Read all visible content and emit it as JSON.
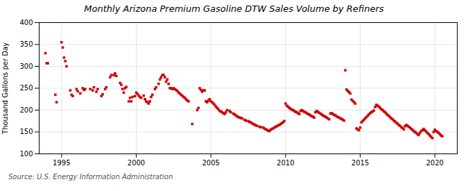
{
  "chart_data": {
    "type": "scatter",
    "title": "Monthly Arizona Premium Gasoline DTW Sales Volume by Refiners",
    "ylabel": "Thousand Gallons per Day",
    "source": "Source: U.S. Energy Information Administration",
    "color": "#cc0000",
    "marker": "square",
    "grid": true,
    "xlim": [
      1993.5,
      2021.5
    ],
    "ylim": [
      100,
      400
    ],
    "xticks": [
      1995,
      2000,
      2005,
      2010,
      2015,
      2020
    ],
    "yticks": [
      100,
      150,
      200,
      250,
      300,
      350,
      400
    ],
    "x": [
      1993.917,
      1994.0,
      1994.083,
      1994.583,
      1994.667,
      1995.0,
      1995.083,
      1995.167,
      1995.25,
      1995.333,
      1995.583,
      1995.667,
      1995.75,
      1996.0,
      1996.083,
      1996.25,
      1996.417,
      1996.5,
      1996.583,
      1996.917,
      1997.083,
      1997.167,
      1997.333,
      1997.417,
      1997.667,
      1997.75,
      1997.917,
      1998.0,
      1998.25,
      1998.333,
      1998.5,
      1998.583,
      1998.667,
      1998.917,
      1999.0,
      1999.083,
      1999.167,
      1999.25,
      1999.333,
      1999.5,
      1999.583,
      1999.667,
      1999.75,
      1999.917,
      2000.0,
      2000.083,
      2000.167,
      2000.25,
      2000.333,
      2000.5,
      2000.583,
      2000.667,
      2000.75,
      2000.833,
      2000.917,
      2001.0,
      2001.083,
      2001.25,
      2001.333,
      2001.5,
      2001.583,
      2001.667,
      2001.75,
      2001.833,
      2001.917,
      2002.0,
      2002.083,
      2002.167,
      2002.25,
      2002.333,
      2002.417,
      2002.5,
      2002.583,
      2002.667,
      2002.75,
      2002.833,
      2002.917,
      2003.0,
      2003.083,
      2003.167,
      2003.25,
      2003.333,
      2003.417,
      2003.5,
      2003.75,
      2004.083,
      2004.167,
      2004.25,
      2004.333,
      2004.417,
      2004.5,
      2004.583,
      2004.667,
      2004.75,
      2004.833,
      2004.917,
      2005.0,
      2005.083,
      2005.167,
      2005.25,
      2005.333,
      2005.417,
      2005.5,
      2005.583,
      2005.667,
      2005.75,
      2005.833,
      2005.917,
      2006.0,
      2006.083,
      2006.25,
      2006.333,
      2006.5,
      2006.583,
      2006.667,
      2006.75,
      2006.833,
      2006.917,
      2007.0,
      2007.083,
      2007.25,
      2007.333,
      2007.5,
      2007.583,
      2007.667,
      2007.75,
      2007.833,
      2007.917,
      2008.0,
      2008.083,
      2008.25,
      2008.333,
      2008.5,
      2008.583,
      2008.667,
      2008.75,
      2008.833,
      2008.917,
      2009.0,
      2009.083,
      2009.167,
      2009.25,
      2009.333,
      2009.417,
      2009.5,
      2009.583,
      2009.667,
      2009.75,
      2009.833,
      2009.917,
      2010.0,
      2010.083,
      2010.167,
      2010.25,
      2010.333,
      2010.417,
      2010.5,
      2010.583,
      2010.667,
      2010.75,
      2010.833,
      2010.917,
      2011.0,
      2011.083,
      2011.167,
      2011.25,
      2011.333,
      2011.417,
      2011.5,
      2011.583,
      2011.667,
      2011.75,
      2011.833,
      2011.917,
      2012.0,
      2012.083,
      2012.167,
      2012.25,
      2012.333,
      2012.417,
      2012.5,
      2012.583,
      2012.667,
      2012.75,
      2012.833,
      2012.917,
      2013.0,
      2013.083,
      2013.167,
      2013.25,
      2013.333,
      2013.417,
      2013.5,
      2013.583,
      2013.667,
      2013.75,
      2013.833,
      2013.917,
      2014.0,
      2014.083,
      2014.167,
      2014.25,
      2014.333,
      2014.417,
      2014.5,
      2014.583,
      2014.667,
      2014.75,
      2014.833,
      2014.917,
      2015.0,
      2015.083,
      2015.167,
      2015.25,
      2015.333,
      2015.417,
      2015.5,
      2015.583,
      2015.667,
      2015.75,
      2015.833,
      2015.917,
      2016.0,
      2016.083,
      2016.167,
      2016.25,
      2016.333,
      2016.417,
      2016.5,
      2016.583,
      2016.667,
      2016.75,
      2016.833,
      2016.917,
      2017.0,
      2017.083,
      2017.167,
      2017.25,
      2017.333,
      2017.417,
      2017.5,
      2017.583,
      2017.667,
      2017.75,
      2017.833,
      2017.917,
      2018.0,
      2018.083,
      2018.167,
      2018.25,
      2018.333,
      2018.417,
      2018.5,
      2018.583,
      2018.667,
      2018.75,
      2018.833,
      2018.917,
      2019.0,
      2019.083,
      2019.167,
      2019.25,
      2019.333,
      2019.417,
      2019.5,
      2019.583,
      2019.667,
      2019.75,
      2019.833,
      2019.917,
      2020.0,
      2020.083,
      2020.167,
      2020.25,
      2020.333,
      2020.417,
      2020.5
    ],
    "values": [
      330,
      307,
      307,
      235,
      218,
      355,
      343,
      320,
      312,
      300,
      245,
      235,
      232,
      248,
      243,
      238,
      250,
      246,
      248,
      248,
      245,
      252,
      242,
      248,
      232,
      236,
      248,
      252,
      275,
      280,
      280,
      284,
      278,
      262,
      258,
      248,
      240,
      250,
      253,
      220,
      228,
      220,
      230,
      232,
      240,
      237,
      233,
      230,
      228,
      233,
      225,
      220,
      218,
      215,
      220,
      230,
      235,
      248,
      252,
      260,
      270,
      275,
      280,
      280,
      275,
      265,
      270,
      260,
      250,
      250,
      248,
      250,
      248,
      246,
      244,
      240,
      238,
      235,
      233,
      230,
      228,
      225,
      222,
      220,
      168,
      200,
      205,
      250,
      246,
      242,
      245,
      245,
      220,
      218,
      222,
      225,
      220,
      218,
      215,
      212,
      208,
      205,
      202,
      198,
      197,
      195,
      193,
      191,
      195,
      200,
      198,
      195,
      192,
      190,
      188,
      186,
      184,
      183,
      182,
      181,
      178,
      176,
      175,
      173,
      172,
      170,
      168,
      167,
      165,
      164,
      162,
      161,
      160,
      158,
      156,
      155,
      153,
      152,
      155,
      157,
      158,
      160,
      162,
      163,
      165,
      166,
      168,
      170,
      172,
      175,
      215,
      210,
      208,
      205,
      203,
      201,
      200,
      198,
      196,
      195,
      193,
      191,
      198,
      200,
      198,
      196,
      195,
      193,
      191,
      190,
      188,
      186,
      185,
      183,
      195,
      198,
      196,
      194,
      192,
      190,
      188,
      186,
      185,
      183,
      181,
      179,
      192,
      193,
      191,
      189,
      188,
      186,
      184,
      183,
      181,
      180,
      178,
      176,
      291,
      247,
      244,
      241,
      238,
      224,
      221,
      218,
      215,
      158,
      156,
      154,
      160,
      172,
      175,
      178,
      181,
      184,
      187,
      190,
      193,
      195,
      197,
      199,
      207,
      212,
      210,
      208,
      205,
      202,
      200,
      197,
      195,
      192,
      189,
      187,
      184,
      181,
      179,
      176,
      174,
      171,
      169,
      166,
      164,
      161,
      159,
      156,
      163,
      166,
      164,
      162,
      160,
      157,
      155,
      152,
      150,
      148,
      145,
      143,
      148,
      152,
      154,
      157,
      154,
      151,
      148,
      145,
      142,
      139,
      136,
      150,
      155,
      152,
      150,
      148,
      145,
      142,
      140
    ]
  }
}
